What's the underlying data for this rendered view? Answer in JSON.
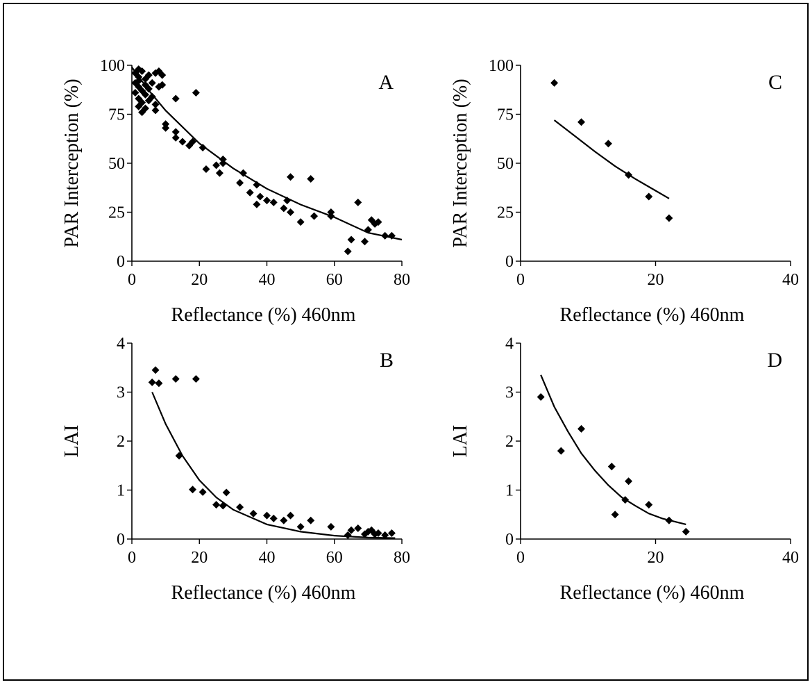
{
  "chart_data": [
    {
      "type": "scatter",
      "panel_label": "A",
      "xlabel": "Reflectance (%) 460nm",
      "ylabel": "PAR Interception (%)",
      "xlim": [
        0,
        80
      ],
      "ylim": [
        0,
        100
      ],
      "xticks": [
        "0",
        "20",
        "40",
        "60",
        "80"
      ],
      "yticks": [
        "0",
        "25",
        "50",
        "75",
        "100"
      ],
      "grid": false,
      "series": [
        {
          "points": [
            [
              1,
              96
            ],
            [
              1,
              91
            ],
            [
              1,
              86
            ],
            [
              2,
              98
            ],
            [
              2,
              94
            ],
            [
              2,
              89
            ],
            [
              2,
              83
            ],
            [
              2,
              79
            ],
            [
              2,
              92
            ],
            [
              3,
              97
            ],
            [
              3,
              87
            ],
            [
              3,
              81
            ],
            [
              3,
              76
            ],
            [
              4,
              93
            ],
            [
              4,
              90
            ],
            [
              4,
              85
            ],
            [
              4,
              78
            ],
            [
              5,
              95
            ],
            [
              5,
              88
            ],
            [
              5,
              82
            ],
            [
              6,
              91
            ],
            [
              6,
              84
            ],
            [
              7,
              96
            ],
            [
              7,
              80
            ],
            [
              7,
              77
            ],
            [
              8,
              97
            ],
            [
              8,
              89
            ],
            [
              9,
              95
            ],
            [
              9,
              90
            ],
            [
              10,
              68
            ],
            [
              10,
              70
            ],
            [
              13,
              66
            ],
            [
              13,
              63
            ],
            [
              13,
              83
            ],
            [
              15,
              61
            ],
            [
              17,
              59
            ],
            [
              18,
              61
            ],
            [
              19,
              86
            ],
            [
              21,
              58
            ],
            [
              22,
              47
            ],
            [
              25,
              49
            ],
            [
              26,
              45
            ],
            [
              27,
              52
            ],
            [
              27,
              50
            ],
            [
              32,
              40
            ],
            [
              33,
              45
            ],
            [
              35,
              35
            ],
            [
              37,
              29
            ],
            [
              37,
              39
            ],
            [
              38,
              33
            ],
            [
              40,
              31
            ],
            [
              42,
              30
            ],
            [
              45,
              27
            ],
            [
              46,
              31
            ],
            [
              47,
              25
            ],
            [
              47,
              43
            ],
            [
              50,
              20
            ],
            [
              53,
              42
            ],
            [
              54,
              23
            ],
            [
              59,
              25
            ],
            [
              59,
              23
            ],
            [
              64,
              5
            ],
            [
              65,
              11
            ],
            [
              67,
              30
            ],
            [
              69,
              10
            ],
            [
              70,
              16
            ],
            [
              71,
              21
            ],
            [
              72,
              19
            ],
            [
              73,
              20
            ],
            [
              75,
              13
            ],
            [
              77,
              13
            ]
          ],
          "fit": [
            [
              0,
              99
            ],
            [
              5,
              87.2
            ],
            [
              10,
              76.9
            ],
            [
              20,
              60.1
            ],
            [
              30,
              47.4
            ],
            [
              40,
              37.0
            ],
            [
              50,
              28.9
            ],
            [
              60,
              22.4
            ],
            [
              70,
              14.5
            ],
            [
              80,
              11
            ]
          ]
        }
      ]
    },
    {
      "type": "scatter",
      "panel_label": "B",
      "xlabel": "Reflectance (%) 460nm",
      "ylabel": "LAI",
      "xlim": [
        0,
        80
      ],
      "ylim": [
        0,
        4
      ],
      "xticks": [
        "0",
        "20",
        "40",
        "60",
        "80"
      ],
      "yticks": [
        "0",
        "1",
        "2",
        "3",
        "4"
      ],
      "grid": false,
      "series": [
        {
          "points": [
            [
              6,
              3.2
            ],
            [
              7,
              3.45
            ],
            [
              8,
              3.18
            ],
            [
              13,
              3.27
            ],
            [
              14,
              1.7
            ],
            [
              18,
              1.01
            ],
            [
              19,
              3.27
            ],
            [
              21,
              0.96
            ],
            [
              25,
              0.7
            ],
            [
              27,
              0.68
            ],
            [
              28,
              0.95
            ],
            [
              32,
              0.65
            ],
            [
              36,
              0.52
            ],
            [
              40,
              0.48
            ],
            [
              42,
              0.42
            ],
            [
              45,
              0.38
            ],
            [
              47,
              0.48
            ],
            [
              50,
              0.25
            ],
            [
              53,
              0.38
            ],
            [
              59,
              0.25
            ],
            [
              64,
              0.08
            ],
            [
              65,
              0.18
            ],
            [
              67,
              0.22
            ],
            [
              69,
              0.1
            ],
            [
              70,
              0.15
            ],
            [
              71,
              0.18
            ],
            [
              72,
              0.1
            ],
            [
              73,
              0.12
            ],
            [
              75,
              0.08
            ],
            [
              77,
              0.12
            ]
          ],
          "fit": [
            [
              6,
              3
            ],
            [
              10,
              2.35
            ],
            [
              15,
              1.7
            ],
            [
              20,
              1.2
            ],
            [
              25,
              0.85
            ],
            [
              30,
              0.6
            ],
            [
              40,
              0.3
            ],
            [
              50,
              0.15
            ],
            [
              60,
              0.07
            ],
            [
              70,
              0.03
            ],
            [
              78,
              0.02
            ]
          ]
        }
      ]
    },
    {
      "type": "scatter",
      "panel_label": "C",
      "xlabel": "Reflectance (%) 460nm",
      "ylabel": "PAR Interception (%)",
      "xlim": [
        0,
        40
      ],
      "ylim": [
        0,
        100
      ],
      "xticks": [
        "0",
        "20",
        "40"
      ],
      "yticks": [
        "0",
        "25",
        "50",
        "75",
        "100"
      ],
      "grid": false,
      "series": [
        {
          "points": [
            [
              5,
              91
            ],
            [
              9,
              71
            ],
            [
              13,
              60
            ],
            [
              16,
              44
            ],
            [
              19,
              33
            ],
            [
              22,
              22
            ]
          ],
          "fit": [
            [
              5,
              72
            ],
            [
              8,
              64
            ],
            [
              11,
              56
            ],
            [
              14,
              48.5
            ],
            [
              17,
              42
            ],
            [
              20,
              36
            ],
            [
              22,
              32
            ]
          ]
        }
      ]
    },
    {
      "type": "scatter",
      "panel_label": "D",
      "xlabel": "Reflectance (%) 460nm",
      "ylabel": "LAI",
      "xlim": [
        0,
        40
      ],
      "ylim": [
        0,
        4
      ],
      "xticks": [
        "0",
        "20",
        "40"
      ],
      "yticks": [
        "0",
        "1",
        "2",
        "3",
        "4"
      ],
      "grid": false,
      "series": [
        {
          "points": [
            [
              3,
              2.9
            ],
            [
              6,
              1.8
            ],
            [
              9,
              2.25
            ],
            [
              13.5,
              1.48
            ],
            [
              14,
              0.5
            ],
            [
              15.5,
              0.8
            ],
            [
              16,
              1.18
            ],
            [
              19,
              0.7
            ],
            [
              22,
              0.38
            ],
            [
              24.5,
              0.15
            ]
          ],
          "fit": [
            [
              3,
              3.35
            ],
            [
              5,
              2.7
            ],
            [
              7,
              2.2
            ],
            [
              9,
              1.75
            ],
            [
              11,
              1.4
            ],
            [
              13,
              1.1
            ],
            [
              15,
              0.85
            ],
            [
              17,
              0.68
            ],
            [
              19,
              0.52
            ],
            [
              21,
              0.42
            ],
            [
              24.5,
              0.3
            ]
          ]
        }
      ]
    }
  ]
}
